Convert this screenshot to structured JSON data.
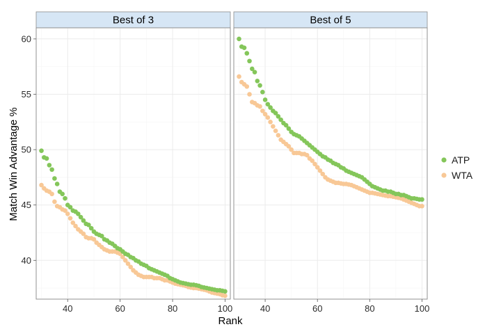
{
  "chart_data": {
    "type": "scatter",
    "xlabel": "Rank",
    "ylabel": "Match Win Advantage %",
    "xlim": [
      28,
      102
    ],
    "ylim": [
      36.5,
      61
    ],
    "x_ticks": [
      40,
      60,
      80,
      100
    ],
    "y_ticks": [
      40,
      45,
      50,
      55,
      60
    ],
    "grid": true,
    "legend": {
      "placement": "right",
      "entries": [
        {
          "name": "ATP",
          "color": "#84c65a"
        },
        {
          "name": "WTA",
          "color": "#f8c896"
        }
      ]
    },
    "x": [
      30,
      31,
      32,
      33,
      34,
      35,
      36,
      37,
      38,
      39,
      40,
      41,
      42,
      43,
      44,
      45,
      46,
      47,
      48,
      49,
      50,
      51,
      52,
      53,
      54,
      55,
      56,
      57,
      58,
      59,
      60,
      61,
      62,
      63,
      64,
      65,
      66,
      67,
      68,
      69,
      70,
      71,
      72,
      73,
      74,
      75,
      76,
      77,
      78,
      79,
      80,
      81,
      82,
      83,
      84,
      85,
      86,
      87,
      88,
      89,
      90,
      91,
      92,
      93,
      94,
      95,
      96,
      97,
      98,
      99,
      100
    ],
    "panels": [
      {
        "strip": "Best of 3",
        "series": [
          {
            "name": "ATP",
            "values": [
              49.9,
              49.3,
              49.2,
              48.6,
              48.2,
              47.4,
              46.9,
              46.2,
              46.0,
              45.6,
              45.0,
              44.8,
              44.5,
              44.4,
              44.2,
              43.9,
              43.6,
              43.3,
              43.2,
              42.9,
              42.6,
              42.4,
              42.3,
              42.2,
              41.9,
              41.8,
              41.6,
              41.5,
              41.3,
              41.1,
              41.0,
              40.8,
              40.6,
              40.5,
              40.3,
              40.2,
              40.0,
              39.9,
              39.7,
              39.6,
              39.5,
              39.3,
              39.2,
              39.1,
              39.0,
              38.9,
              38.8,
              38.7,
              38.6,
              38.4,
              38.3,
              38.2,
              38.1,
              38.0,
              37.95,
              37.9,
              37.85,
              37.8,
              37.8,
              37.75,
              37.7,
              37.6,
              37.55,
              37.5,
              37.45,
              37.4,
              37.35,
              37.3,
              37.3,
              37.25,
              37.2
            ]
          },
          {
            "name": "WTA",
            "values": [
              46.8,
              46.5,
              46.3,
              46.2,
              46.0,
              45.3,
              44.9,
              44.8,
              44.6,
              44.5,
              44.2,
              43.8,
              43.4,
              43.1,
              42.8,
              42.6,
              42.4,
              42.1,
              42.0,
              42.0,
              41.9,
              41.6,
              41.4,
              41.2,
              41.0,
              40.9,
              40.8,
              40.8,
              40.8,
              40.7,
              40.6,
              40.3,
              40.0,
              39.7,
              39.4,
              39.1,
              38.9,
              38.7,
              38.6,
              38.5,
              38.5,
              38.5,
              38.5,
              38.4,
              38.4,
              38.4,
              38.3,
              38.2,
              38.2,
              38.1,
              38.0,
              37.9,
              37.85,
              37.8,
              37.75,
              37.7,
              37.6,
              37.55,
              37.5,
              37.5,
              37.45,
              37.4,
              37.35,
              37.3,
              37.2,
              37.1,
              37.05,
              37.0,
              36.95,
              36.85,
              36.8
            ]
          }
        ]
      },
      {
        "strip": "Best of 5",
        "series": [
          {
            "name": "ATP",
            "values": [
              60.0,
              59.3,
              59.2,
              58.7,
              58.0,
              57.3,
              57.0,
              56.2,
              55.8,
              55.2,
              54.5,
              54.1,
              53.8,
              53.5,
              53.3,
              53.0,
              52.7,
              52.4,
              52.2,
              51.9,
              51.6,
              51.4,
              51.3,
              51.2,
              51.0,
              50.8,
              50.6,
              50.4,
              50.2,
              50.0,
              49.8,
              49.6,
              49.4,
              49.3,
              49.1,
              49.0,
              48.8,
              48.7,
              48.6,
              48.4,
              48.3,
              48.1,
              48.0,
              47.9,
              47.8,
              47.7,
              47.6,
              47.5,
              47.3,
              47.1,
              46.9,
              46.7,
              46.6,
              46.5,
              46.4,
              46.3,
              46.3,
              46.2,
              46.2,
              46.1,
              46.0,
              46.0,
              45.9,
              45.9,
              45.8,
              45.7,
              45.6,
              45.6,
              45.55,
              45.5,
              45.5
            ]
          },
          {
            "name": "WTA",
            "values": [
              56.6,
              56.1,
              55.9,
              55.7,
              55.0,
              54.3,
              54.2,
              54.0,
              53.9,
              53.5,
              53.2,
              52.9,
              52.5,
              52.1,
              51.7,
              51.3,
              50.9,
              50.7,
              50.5,
              50.3,
              50.0,
              49.7,
              49.7,
              49.7,
              49.6,
              49.6,
              49.5,
              49.2,
              49.0,
              48.7,
              48.4,
              48.1,
              47.8,
              47.5,
              47.3,
              47.2,
              47.1,
              47.0,
              47.0,
              46.95,
              46.9,
              46.9,
              46.85,
              46.8,
              46.7,
              46.6,
              46.5,
              46.4,
              46.3,
              46.2,
              46.1,
              46.1,
              46.05,
              46.0,
              45.95,
              45.9,
              45.85,
              45.8,
              45.8,
              45.75,
              45.7,
              45.65,
              45.6,
              45.5,
              45.4,
              45.3,
              45.2,
              45.1,
              45.0,
              44.9,
              44.9
            ]
          }
        ]
      }
    ]
  }
}
